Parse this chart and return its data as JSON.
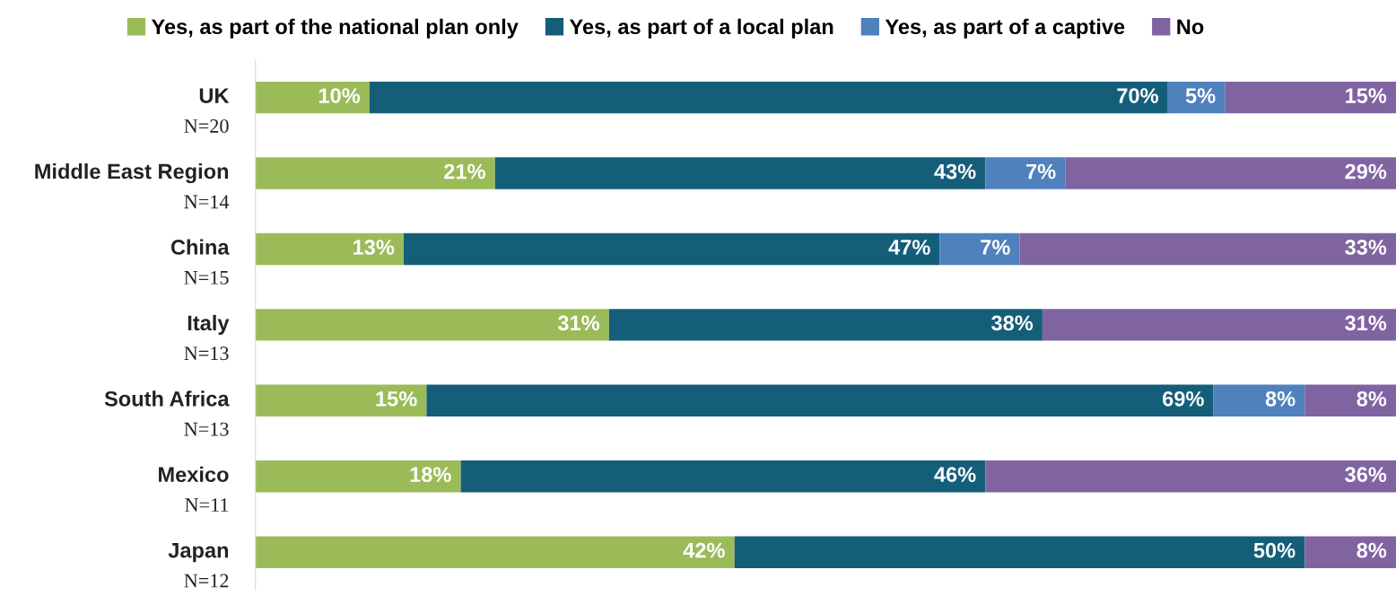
{
  "chart_data": {
    "type": "bar",
    "orientation": "horizontal",
    "stacked": true,
    "legend": "top",
    "tick_labels": "y",
    "categories": [
      "UK\nN=20",
      "Middle East Region\nN=14",
      "China\nN=15",
      "Italy\nN=13",
      "South Africa\nN=13",
      "Mexico\nN=11",
      "Japan\nN=12"
    ],
    "series": [
      {
        "name": "Yes, as part of the national plan only",
        "color": "#9bbb59",
        "values": [
          10,
          21,
          13,
          31,
          15,
          18,
          42
        ],
        "value_labels": [
          "10%",
          "21%",
          "13%",
          "31%",
          "15%",
          "18%",
          "42%"
        ]
      },
      {
        "name": "Yes, as part of a local plan",
        "color": "#155e7a",
        "values": [
          70,
          43,
          47,
          38,
          69,
          46,
          50
        ],
        "value_labels": [
          "70%",
          "43%",
          "47%",
          "38%",
          "69%",
          "46%",
          "50%"
        ]
      },
      {
        "name": "Yes, as part of a captive",
        "color": "#4f81bd",
        "values": [
          5,
          7,
          7,
          null,
          8,
          null,
          null
        ],
        "value_labels": [
          "5%",
          "7%",
          "7%",
          null,
          "8%",
          null,
          null
        ]
      },
      {
        "name": "No",
        "color": "#8064a2",
        "values": [
          15,
          29,
          33,
          31,
          8,
          36,
          8
        ],
        "value_labels": [
          "15%",
          "29%",
          "33%",
          "31%",
          "8%",
          "36%",
          "8%"
        ]
      }
    ]
  }
}
